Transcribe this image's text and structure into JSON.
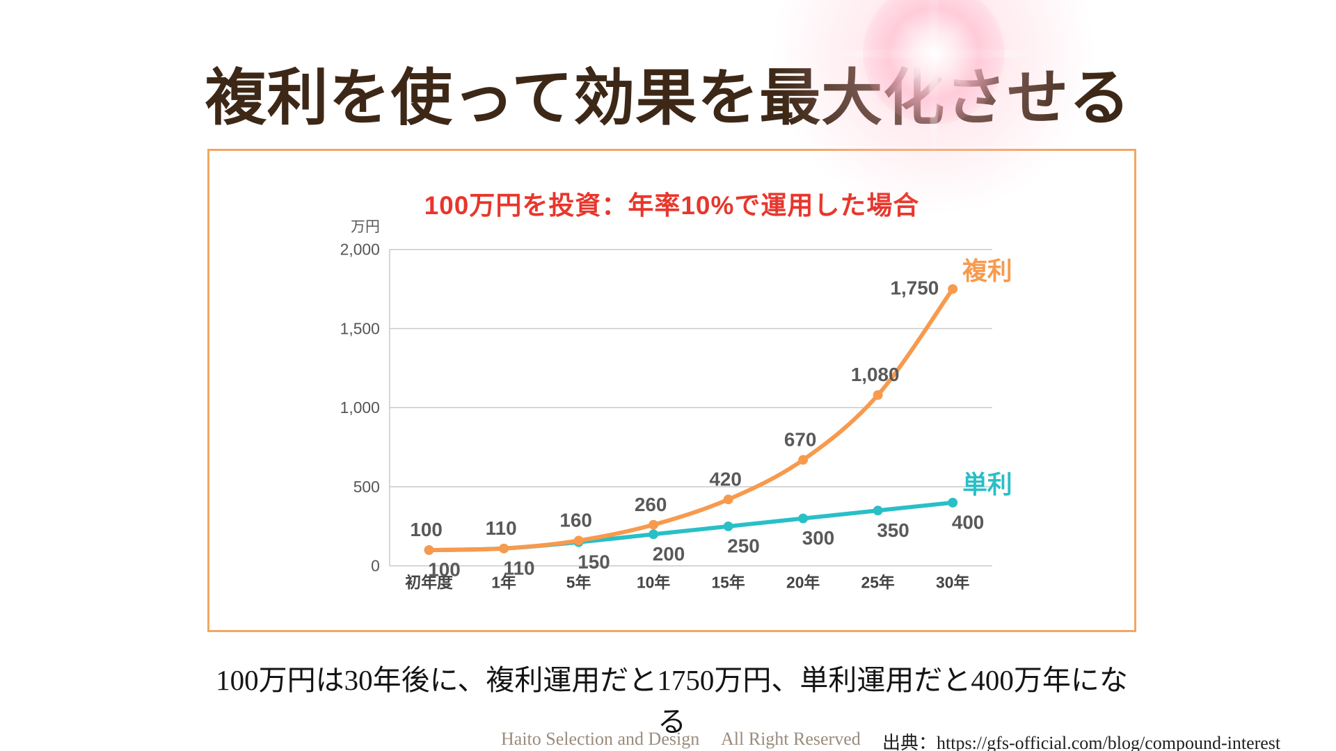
{
  "page": {
    "title": "複利を使って効果を最大化させる",
    "caption": "100万円は30年後に、複利運用だと1750万円、単利運用だと400万年になる",
    "footer_credit": "Haito Selection and Design",
    "footer_rights": "All Right Reserved",
    "footer_source": "出典：https://gfs-official.com/blog/compound-interest"
  },
  "colors": {
    "title_text": "#3d2817",
    "chart_title": "#e8362c",
    "panel_border": "#f2a661",
    "compound_line": "#f79a4d",
    "simple_line": "#29bfc7",
    "grid": "#c9c9c9",
    "data_label": "#595959",
    "sparkle_pink": "#ffb9cd"
  },
  "chart_data": {
    "type": "line",
    "title": "100万円を投資：年率10%で運用した場合",
    "unit_label": "万円",
    "categories": [
      "初年度",
      "1年",
      "5年",
      "10年",
      "15年",
      "20年",
      "25年",
      "30年"
    ],
    "series": [
      {
        "key": "compound",
        "name": "複利",
        "color": "#f79a4d",
        "values": [
          100,
          110,
          160,
          260,
          420,
          670,
          1080,
          1750
        ],
        "labels": [
          "100",
          "110",
          "160",
          "260",
          "420",
          "670",
          "1,080",
          "1,750"
        ],
        "label_position": "above"
      },
      {
        "key": "simple",
        "name": "単利",
        "color": "#29bfc7",
        "values": [
          100,
          110,
          150,
          200,
          250,
          300,
          350,
          400
        ],
        "labels": [
          "100",
          "110",
          "150",
          "200",
          "250",
          "300",
          "350",
          "400"
        ],
        "label_position": "below"
      }
    ],
    "ylim": [
      0,
      2000
    ],
    "yticks": [
      0,
      500,
      1000,
      1500,
      2000
    ],
    "ytick_labels": [
      "0",
      "500",
      "1,000",
      "1,500",
      "2,000"
    ],
    "grid": "horizontal",
    "legend_position": "end-of-line"
  }
}
